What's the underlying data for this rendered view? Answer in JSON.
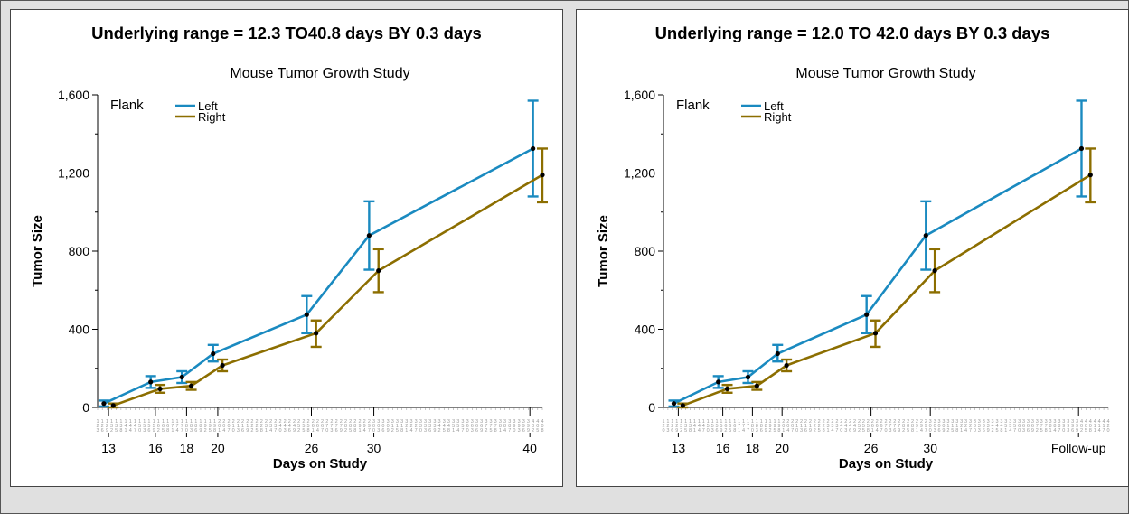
{
  "colors": {
    "left": "#1a8ac0",
    "right": "#8c6e00",
    "background": "#e0e0e0"
  },
  "chart_data": [
    {
      "type": "line",
      "title": "Underlying range = 12.3 TO40.8 days BY 0.3 days",
      "subtitle": "Mouse Tumor Growth Study",
      "xlabel": "Days on Study",
      "ylabel": "Tumor Size",
      "xlim": [
        12.3,
        40.8
      ],
      "ylim": [
        0,
        1600
      ],
      "x_ticks": [
        13,
        16,
        18,
        20,
        26,
        30,
        40
      ],
      "x_tick_labels": [
        "13",
        "16",
        "18",
        "20",
        "26",
        "30",
        "40"
      ],
      "y_ticks": [
        0,
        400,
        800,
        1200,
        1600
      ],
      "y_tick_labels": [
        "0",
        "400",
        "800",
        "1,200",
        "1,600"
      ],
      "legend_title": "Flank",
      "legend_position": "top-left",
      "series": [
        {
          "name": "Left",
          "color": "#1a8ac0",
          "x": [
            12.7,
            15.7,
            17.7,
            19.7,
            25.7,
            29.7,
            40.2
          ],
          "y": [
            20,
            130,
            155,
            275,
            475,
            880,
            1325
          ],
          "err_low": [
            5,
            100,
            125,
            235,
            380,
            705,
            1080
          ],
          "err_high": [
            35,
            160,
            185,
            320,
            570,
            1055,
            1570
          ]
        },
        {
          "name": "Right",
          "color": "#8c6e00",
          "x": [
            13.3,
            16.3,
            18.3,
            20.3,
            26.3,
            30.3,
            40.8
          ],
          "y": [
            10,
            95,
            110,
            215,
            380,
            700,
            1190
          ],
          "err_low": [
            0,
            75,
            90,
            185,
            310,
            590,
            1050
          ],
          "err_high": [
            20,
            115,
            130,
            245,
            445,
            810,
            1325
          ]
        }
      ]
    },
    {
      "type": "line",
      "title": "Underlying range = 12.0 TO 42.0 days BY 0.3 days",
      "subtitle": "Mouse Tumor Growth Study",
      "xlabel": "Days on Study",
      "ylabel": "Tumor Size",
      "xlim": [
        12.0,
        42.0
      ],
      "ylim": [
        0,
        1600
      ],
      "x_ticks": [
        13,
        16,
        18,
        20,
        26,
        30,
        40
      ],
      "x_tick_labels": [
        "13",
        "16",
        "18",
        "20",
        "26",
        "30",
        "Follow-up"
      ],
      "y_ticks": [
        0,
        400,
        800,
        1200,
        1600
      ],
      "y_tick_labels": [
        "0",
        "400",
        "800",
        "1,200",
        "1,600"
      ],
      "legend_title": "Flank",
      "legend_position": "top-left",
      "series": [
        {
          "name": "Left",
          "color": "#1a8ac0",
          "x": [
            12.7,
            15.7,
            17.7,
            19.7,
            25.7,
            29.7,
            40.2
          ],
          "y": [
            20,
            130,
            155,
            275,
            475,
            880,
            1325
          ],
          "err_low": [
            5,
            100,
            125,
            235,
            380,
            705,
            1080
          ],
          "err_high": [
            35,
            160,
            185,
            320,
            570,
            1055,
            1570
          ]
        },
        {
          "name": "Right",
          "color": "#8c6e00",
          "x": [
            13.3,
            16.3,
            18.3,
            20.3,
            26.3,
            30.3,
            40.8
          ],
          "y": [
            10,
            95,
            110,
            215,
            380,
            700,
            1190
          ],
          "err_low": [
            0,
            75,
            90,
            185,
            310,
            590,
            1050
          ],
          "err_high": [
            20,
            115,
            130,
            245,
            445,
            810,
            1325
          ]
        }
      ]
    }
  ]
}
